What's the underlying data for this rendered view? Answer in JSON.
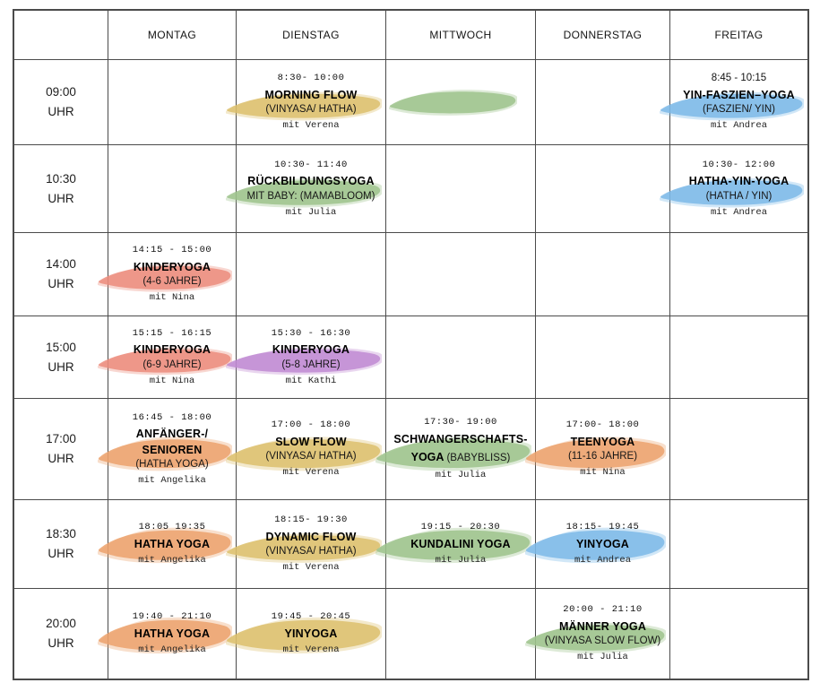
{
  "palette": {
    "yellow": "#dcc06c",
    "green": "#9dc38c",
    "blue": "#7cb9e8",
    "red": "#ec8c7c",
    "purple": "#c08ad2",
    "orange": "#eca26c"
  },
  "schedule": {
    "day_headers": [
      "MONTAG",
      "DIENSTAG",
      "MITTWOCH",
      "DONNERSTAG",
      "FREITAG"
    ],
    "time_unit": "UHR",
    "rows": [
      {
        "time": "09:00",
        "cells": [
          null,
          {
            "color": "yellow",
            "lines": [
              {
                "style": "time",
                "text": "8:30- 10:00"
              },
              {
                "style": "title",
                "text": "MORNING FLOW"
              },
              {
                "style": "subtitle",
                "text": "(VINYASA/ HATHA)"
              },
              {
                "style": "teacher",
                "text": "mit Verena"
              }
            ]
          },
          {
            "color": "green",
            "lines": []
          },
          null,
          {
            "color": "blue",
            "lines": [
              {
                "style": "time-sans",
                "text": "8:45 - 10:15"
              },
              {
                "style": "title",
                "text": "YIN-FASZIEN–YOGA"
              },
              {
                "style": "subtitle",
                "text": "(FASZIEN/ YIN)"
              },
              {
                "style": "teacher",
                "text": "mit Andrea"
              }
            ]
          }
        ]
      },
      {
        "time": "10:30",
        "cells": [
          null,
          {
            "color": "green",
            "lines": [
              {
                "style": "time",
                "text": "10:30- 11:40"
              },
              {
                "style": "title",
                "text": "RÜCKBILDUNGSYOGA"
              },
              {
                "style": "subtitle",
                "text": "MIT BABY: (MAMABLOOM)"
              },
              {
                "style": "teacher",
                "text": "mit Julia"
              }
            ]
          },
          null,
          null,
          {
            "color": "blue",
            "lines": [
              {
                "style": "time",
                "text": "10:30- 12:00"
              },
              {
                "style": "title",
                "text": "HATHA-YIN-YOGA"
              },
              {
                "style": "subtitle",
                "text": "(HATHA / YIN)"
              },
              {
                "style": "teacher",
                "text": "mit Andrea"
              }
            ]
          }
        ]
      },
      {
        "time": "14:00",
        "cells": [
          {
            "color": "red",
            "lines": [
              {
                "style": "time",
                "text": "14:15 - 15:00"
              },
              {
                "style": "title",
                "text": "KINDERYOGA"
              },
              {
                "style": "subtitle",
                "text": "(4-6 JAHRE)"
              },
              {
                "style": "teacher",
                "text": "mit Nina"
              }
            ]
          },
          null,
          null,
          null,
          null
        ]
      },
      {
        "time": "15:00",
        "cells": [
          {
            "color": "red",
            "lines": [
              {
                "style": "time",
                "text": "15:15 - 16:15"
              },
              {
                "style": "title",
                "text": "KINDERYOGA"
              },
              {
                "style": "subtitle",
                "text": "(6-9 JAHRE)"
              },
              {
                "style": "teacher",
                "text": "mit Nina"
              }
            ]
          },
          {
            "color": "purple",
            "lines": [
              {
                "style": "time",
                "text": "15:30 - 16:30"
              },
              {
                "style": "title",
                "text": "KINDERYOGA"
              },
              {
                "style": "subtitle",
                "text": "(5-8 JAHRE)"
              },
              {
                "style": "teacher",
                "text": "mit Kathi"
              }
            ]
          },
          null,
          null,
          null
        ]
      },
      {
        "time": "17:00",
        "cells": [
          {
            "color": "orange",
            "lines": [
              {
                "style": "time",
                "text": "16:45 - 18:00"
              },
              {
                "style": "title",
                "text": "ANFÄNGER-/"
              },
              {
                "style": "title",
                "text": "SENIOREN"
              },
              {
                "style": "subtitle",
                "text": "(HATHA YOGA)"
              },
              {
                "style": "teacher",
                "text": "mit Angelika"
              }
            ]
          },
          {
            "color": "yellow",
            "lines": [
              {
                "style": "time",
                "text": "17:00 - 18:00"
              },
              {
                "style": "title",
                "text": "SLOW FLOW"
              },
              {
                "style": "subtitle",
                "text": "(VINYASA/ HATHA)"
              },
              {
                "style": "teacher",
                "text": "mit Verena"
              }
            ]
          },
          {
            "color": "green",
            "lines": [
              {
                "style": "time",
                "text": "17:30- 19:00"
              },
              {
                "style": "title",
                "text": "SCHWANGERSCHAFTS-"
              },
              {
                "spans": [
                  {
                    "style": "title",
                    "text": "YOGA "
                  },
                  {
                    "style": "subtitle",
                    "text": "(BABYBLISS)"
                  }
                ]
              },
              {
                "style": "teacher",
                "text": "mit Julia"
              }
            ]
          },
          {
            "color": "orange",
            "lines": [
              {
                "style": "time",
                "text": "17:00- 18:00"
              },
              {
                "style": "title",
                "text": "TEENYOGA"
              },
              {
                "style": "subtitle",
                "text": "(11-16 JAHRE)"
              },
              {
                "style": "teacher",
                "text": "mit Nina"
              }
            ]
          },
          null
        ]
      },
      {
        "time": "18:30",
        "cells": [
          {
            "color": "orange",
            "lines": [
              {
                "style": "time",
                "text": "18:05 19:35"
              },
              {
                "style": "title",
                "text": "HATHA YOGA"
              },
              {
                "style": "teacher",
                "text": "mit Angelika"
              }
            ]
          },
          {
            "color": "yellow",
            "lines": [
              {
                "style": "time",
                "text": "18:15- 19:30"
              },
              {
                "style": "title",
                "text": "DYNAMIC FLOW"
              },
              {
                "style": "subtitle",
                "text": "(VINYASA/ HATHA)"
              },
              {
                "style": "teacher",
                "text": "mit Verena"
              }
            ]
          },
          {
            "color": "green",
            "lines": [
              {
                "style": "time",
                "text": "19:15 - 20:30"
              },
              {
                "style": "title",
                "text": "KUNDALINI YOGA"
              },
              {
                "style": "teacher",
                "text": "mit Julia"
              }
            ]
          },
          {
            "color": "blue",
            "lines": [
              {
                "style": "time",
                "text": "18:15- 19:45"
              },
              {
                "style": "title",
                "text": "YINYOGA"
              },
              {
                "style": "teacher",
                "text": "mit Andrea"
              }
            ]
          },
          null
        ]
      },
      {
        "time": "20:00",
        "cells": [
          {
            "color": "orange",
            "lines": [
              {
                "style": "time",
                "text": "19:40 - 21:10"
              },
              {
                "style": "title",
                "text": "HATHA YOGA"
              },
              {
                "style": "teacher",
                "text": "mit Angelika"
              }
            ]
          },
          {
            "color": "yellow",
            "lines": [
              {
                "style": "time",
                "text": "19:45 - 20:45"
              },
              {
                "style": "title",
                "text": "YINYOGA"
              },
              {
                "style": "teacher",
                "text": "mit Verena"
              }
            ]
          },
          null,
          {
            "color": "green",
            "lines": [
              {
                "style": "time",
                "text": "20:00 - 21:10"
              },
              {
                "style": "title",
                "text": "MÄNNER YOGA"
              },
              {
                "style": "subtitle",
                "text": "(VINYASA SLOW FLOW)"
              },
              {
                "style": "teacher",
                "text": "mit Julia"
              }
            ]
          },
          null
        ]
      }
    ]
  }
}
